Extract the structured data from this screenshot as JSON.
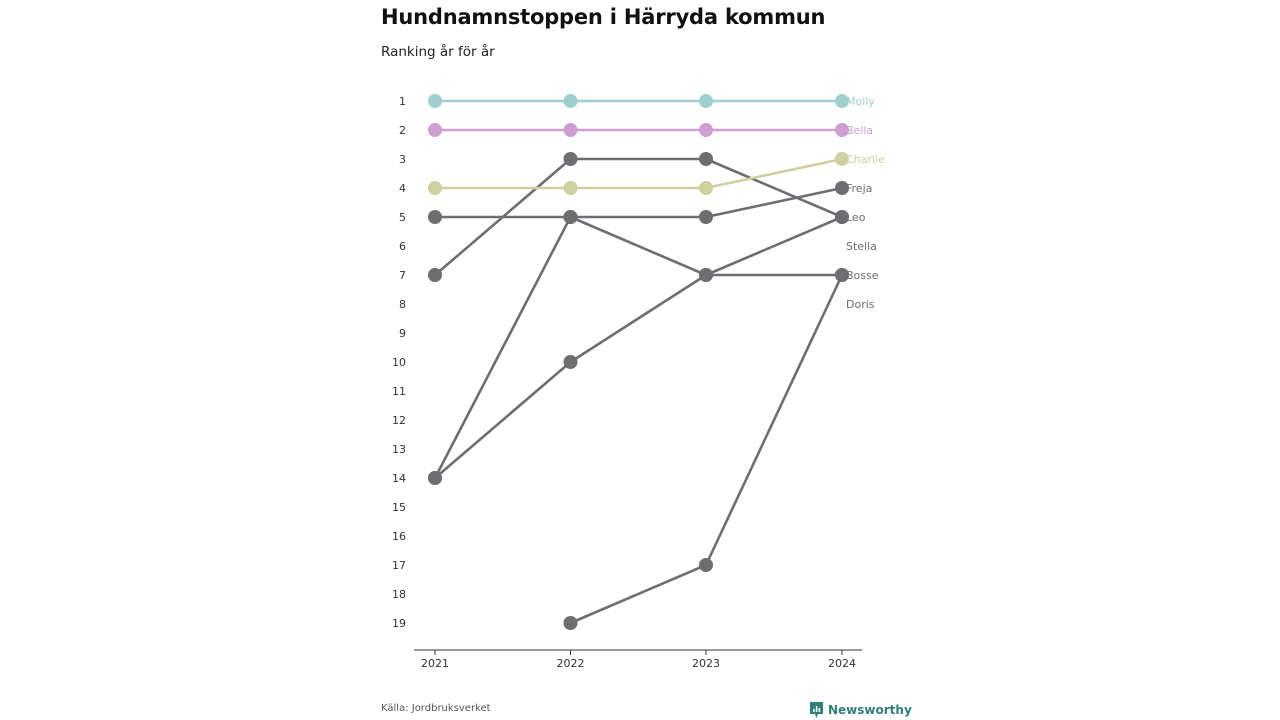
{
  "header": {
    "title": "Hundnamnstoppen i Härryda kommun",
    "subtitle": "Ranking år för år"
  },
  "footer": {
    "source": "Källa: Jordbruksverket",
    "brand": "Newsworthy",
    "brand_icon": "newsworthy-logo-icon"
  },
  "colors": {
    "grey": "#6d6d72",
    "axis": "#333333"
  },
  "chart_data": {
    "type": "line",
    "title": "Hundnamnstoppen i Härryda kommun",
    "subtitle": "Ranking år för år",
    "x": [
      "2021",
      "2022",
      "2023",
      "2024"
    ],
    "y_ticks": [
      "1",
      "2",
      "3",
      "4",
      "5",
      "6",
      "7",
      "8",
      "9",
      "10",
      "11",
      "12",
      "13",
      "14",
      "15",
      "16",
      "17",
      "18",
      "19"
    ],
    "ylim": [
      1,
      19
    ],
    "y_inverted": true,
    "grid": false,
    "series": [
      {
        "name": "Molly",
        "values": [
          1,
          1,
          1,
          1
        ],
        "color": "#9ccfcd"
      },
      {
        "name": "Bella",
        "values": [
          2,
          2,
          2,
          2
        ],
        "color": "#cf9fd4"
      },
      {
        "name": "Charlie",
        "values": [
          4,
          4,
          4,
          3
        ],
        "color": "#cfcf9f"
      },
      {
        "name": "Freja",
        "values": [
          5,
          5,
          5,
          4
        ],
        "color": "#6d6d72"
      },
      {
        "name": "Leo",
        "values": [
          7,
          3,
          3,
          5
        ],
        "color": "#6d6d72"
      },
      {
        "name": "Stella",
        "values": [
          14,
          10,
          7,
          5
        ],
        "color": "#6d6d72"
      },
      {
        "name": "Bosse",
        "values": [
          14,
          5,
          7,
          7
        ],
        "color": "#6d6d72"
      },
      {
        "name": "Doris",
        "values": [
          null,
          19,
          17,
          7
        ],
        "color": "#6d6d72"
      }
    ]
  }
}
